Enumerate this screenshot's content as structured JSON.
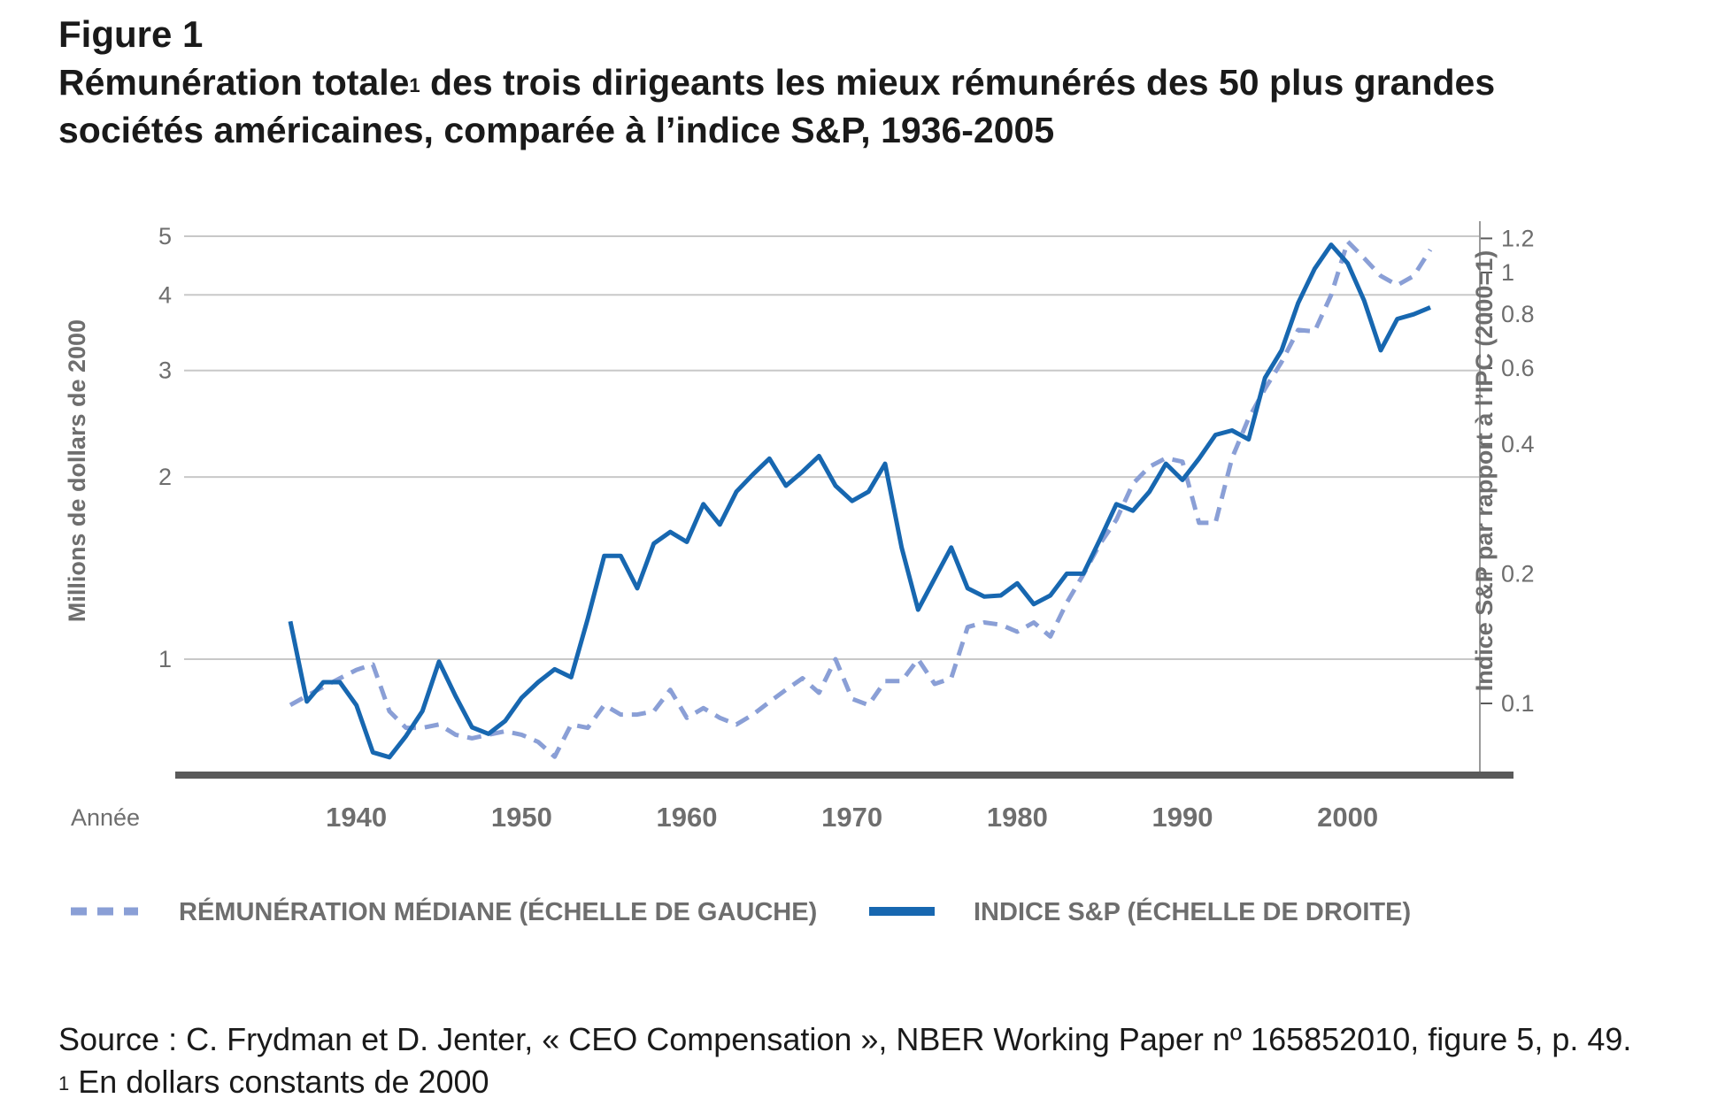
{
  "figure": {
    "label": "Figure 1",
    "title_main": "Rémunération totale",
    "title_sup": "1",
    "title_rest": " des trois dirigeants les mieux rémunérés des 50 plus grandes sociétés américaines, comparée à l’indice S&P, 1936-2005"
  },
  "footer": {
    "source": "Source : C. Frydman et D. Jenter, « CEO Compensation », NBER Working Paper nº 165852010, figure 5, p. 49.",
    "note_mark": "1",
    "note_text": " En dollars constants de 2000"
  },
  "chart_data": {
    "type": "line",
    "colors": {
      "median": "#8a9fd6",
      "sp": "#1767b0",
      "grid": "#c8c8c8",
      "axis": "#5a5a5a"
    },
    "xlabel": "Année",
    "xlim": [
      1930,
      2008
    ],
    "xticks": [
      "1940",
      "1950",
      "1960",
      "1970",
      "1980",
      "1990",
      "2000"
    ],
    "left_axis": {
      "label": "Millions de dollars de 2000",
      "scale": "log",
      "ticks": [
        "1",
        "2",
        "3",
        "4",
        "5"
      ]
    },
    "right_axis": {
      "label": "Indice S&P par rapport à l’IPC (2000=1)",
      "scale": "log",
      "ticks": [
        "0.1",
        "0.2",
        "0.4",
        "0.6",
        "0.8",
        "1",
        "1.2"
      ]
    },
    "legend": {
      "median": "RÉMUNÉRATION MÉDIANE (ÉCHELLE DE GAUCHE)",
      "sp": "INDICE S&P (ÉCHELLE DE DROITE)"
    },
    "series": [
      {
        "name": "RÉMUNÉRATION MÉDIANE (ÉCHELLE DE GAUCHE)",
        "axis": "left",
        "style": "dashed",
        "x": [
          1936,
          1937,
          1938,
          1939,
          1940,
          1941,
          1942,
          1943,
          1944,
          1945,
          1946,
          1947,
          1948,
          1949,
          1950,
          1951,
          1952,
          1953,
          1954,
          1955,
          1956,
          1957,
          1958,
          1959,
          1960,
          1961,
          1962,
          1963,
          1964,
          1965,
          1966,
          1967,
          1968,
          1969,
          1970,
          1971,
          1972,
          1973,
          1974,
          1975,
          1976,
          1977,
          1978,
          1979,
          1980,
          1981,
          1982,
          1983,
          1984,
          1985,
          1986,
          1987,
          1988,
          1989,
          1990,
          1991,
          1992,
          1993,
          1994,
          1995,
          1996,
          1997,
          1998,
          1999,
          2000,
          2001,
          2002,
          2003,
          2004,
          2005
        ],
        "values": [
          0.84,
          0.87,
          0.9,
          0.93,
          0.96,
          0.98,
          0.82,
          0.77,
          0.77,
          0.78,
          0.75,
          0.74,
          0.75,
          0.76,
          0.75,
          0.73,
          0.69,
          0.78,
          0.77,
          0.84,
          0.81,
          0.81,
          0.82,
          0.89,
          0.8,
          0.83,
          0.8,
          0.78,
          0.81,
          0.85,
          0.89,
          0.93,
          0.88,
          1.0,
          0.86,
          0.84,
          0.92,
          0.92,
          1.0,
          0.91,
          0.93,
          1.13,
          1.15,
          1.14,
          1.11,
          1.15,
          1.09,
          1.24,
          1.38,
          1.55,
          1.7,
          1.95,
          2.08,
          2.15,
          2.12,
          1.68,
          1.68,
          2.15,
          2.5,
          2.8,
          3.1,
          3.5,
          3.48,
          4.0,
          4.9,
          4.6,
          4.3,
          4.15,
          4.3,
          4.75
        ]
      },
      {
        "name": "INDICE S&P (ÉCHELLE DE DROITE)",
        "axis": "right",
        "style": "solid",
        "x": [
          1936,
          1937,
          1938,
          1939,
          1940,
          1941,
          1942,
          1943,
          1944,
          1945,
          1946,
          1947,
          1948,
          1949,
          1950,
          1951,
          1952,
          1953,
          1954,
          1955,
          1956,
          1957,
          1958,
          1959,
          1960,
          1961,
          1962,
          1963,
          1964,
          1965,
          1966,
          1967,
          1968,
          1969,
          1970,
          1971,
          1972,
          1973,
          1974,
          1975,
          1976,
          1977,
          1978,
          1979,
          1980,
          1981,
          1982,
          1983,
          1984,
          1985,
          1986,
          1987,
          1988,
          1989,
          1990,
          1991,
          1992,
          1993,
          1994,
          1995,
          1996,
          1997,
          1998,
          1999,
          2000,
          2001,
          2002,
          2003,
          2004,
          2005
        ],
        "values": [
          0.155,
          0.101,
          0.112,
          0.112,
          0.099,
          0.077,
          0.075,
          0.084,
          0.096,
          0.125,
          0.104,
          0.088,
          0.085,
          0.091,
          0.103,
          0.112,
          0.12,
          0.115,
          0.157,
          0.22,
          0.22,
          0.185,
          0.235,
          0.25,
          0.237,
          0.29,
          0.26,
          0.31,
          0.34,
          0.37,
          0.32,
          0.345,
          0.375,
          0.32,
          0.295,
          0.31,
          0.36,
          0.23,
          0.165,
          0.195,
          0.23,
          0.185,
          0.177,
          0.178,
          0.19,
          0.17,
          0.178,
          0.2,
          0.2,
          0.24,
          0.29,
          0.28,
          0.31,
          0.36,
          0.33,
          0.37,
          0.42,
          0.43,
          0.41,
          0.57,
          0.66,
          0.85,
          1.02,
          1.16,
          1.05,
          0.86,
          0.66,
          0.78,
          0.8,
          0.83
        ]
      }
    ]
  }
}
